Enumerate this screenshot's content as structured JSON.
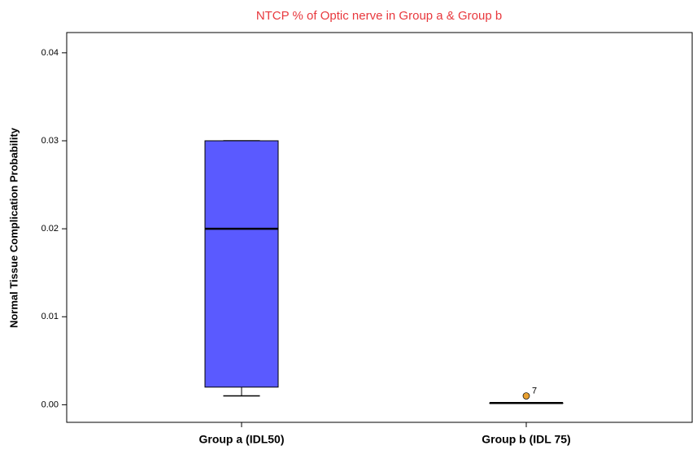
{
  "chart_data": {
    "type": "box",
    "title": "NTCP % of Optic nerve in Group a & Group b",
    "y_label": "Normal Tissue Complication Probability",
    "categories": [
      "Group a (IDL50)",
      "Group b (IDL 75)"
    ],
    "boxes": [
      {
        "min": 0.001,
        "q1": 0.002,
        "median": 0.02,
        "q3": 0.03,
        "max": 0.03
      },
      {
        "min": 0.0002,
        "q1": 0.0002,
        "median": 0.0002,
        "q3": 0.0002,
        "max": 0.0002
      }
    ],
    "outliers": [
      [],
      [
        {
          "value": 0.001,
          "label": "7"
        }
      ]
    ],
    "color": "#5a5aff",
    "outlier_color": "#e8a030",
    "title_color": "#e8383d",
    "ylim": [
      -0.002,
      0.0423
    ],
    "yticks": [
      {
        "value": 0,
        "label": "0.00"
      },
      {
        "value": 0.01,
        "label": "0.01"
      },
      {
        "value": 0.02,
        "label": "0.02"
      },
      {
        "value": 0.03,
        "label": "0.03"
      },
      {
        "value": 0.04,
        "label": "0.04"
      }
    ]
  }
}
